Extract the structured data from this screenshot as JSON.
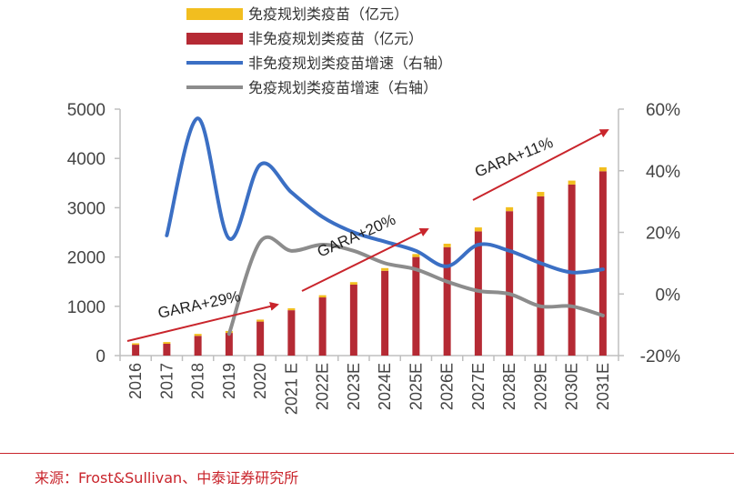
{
  "chart_data": {
    "type": "bar",
    "categories": [
      "2016",
      "2017",
      "2018",
      "2019",
      "2020",
      "2021 E",
      "2022E",
      "2023E",
      "2024E",
      "2025E",
      "2026E",
      "2027E",
      "2028E",
      "2029E",
      "2030E",
      "2031E"
    ],
    "series": [
      {
        "name": "非免疫规划类疫苗（亿元）",
        "kind": "bar",
        "axis": "left",
        "color": "#b52a34",
        "values": [
          220,
          240,
          400,
          460,
          690,
          920,
          1180,
          1440,
          1720,
          2000,
          2200,
          2520,
          2930,
          3230,
          3470,
          3740
        ]
      },
      {
        "name": "免疫规划类疫苗（亿元）",
        "kind": "bar",
        "axis": "left",
        "color": "#f2be1f",
        "values": [
          30,
          35,
          40,
          40,
          40,
          40,
          45,
          50,
          55,
          60,
          70,
          80,
          80,
          90,
          80,
          80
        ]
      },
      {
        "name": "非免疫规划类疫苗增速（右轴）",
        "kind": "line",
        "axis": "right",
        "color": "#3b6fc4",
        "values": [
          null,
          19,
          57,
          18,
          42,
          33,
          25,
          20,
          17,
          14,
          9,
          16,
          14,
          10,
          7,
          8
        ]
      },
      {
        "name": "免疫规划类疫苗增速（右轴）",
        "kind": "line",
        "axis": "right",
        "color": "#8c8c8c",
        "values": [
          null,
          null,
          null,
          -13,
          17,
          14,
          16,
          14,
          10,
          8,
          4,
          1,
          0,
          -4,
          -4,
          -7
        ]
      }
    ],
    "left_axis": {
      "min": 0,
      "max": 5000,
      "ticks": [
        "0",
        "1000",
        "2000",
        "3000",
        "4000",
        "5000"
      ]
    },
    "right_axis": {
      "min": -20,
      "max": 60,
      "ticks": [
        "-20%",
        "0%",
        "20%",
        "40%",
        "60%"
      ]
    },
    "annotations": [
      {
        "text": "GARA+29%",
        "from_category": 0,
        "to_category": 5
      },
      {
        "text": "GARA+20%",
        "from_category": 6,
        "to_category": 10
      },
      {
        "text": "GARA+11%",
        "from_category": 11,
        "to_category": 15
      }
    ],
    "arrow_color": "#c9252c",
    "legend_position": "top"
  },
  "source_text": "来源：Frost&Sullivan、中泰证券研究所"
}
